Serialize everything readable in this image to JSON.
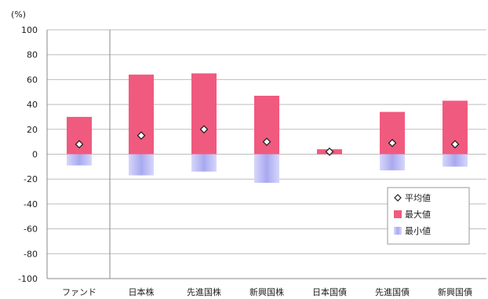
{
  "chart_data": {
    "type": "bar",
    "unit_label": "(%)",
    "categories": [
      "ファンド",
      "日本株",
      "先進国株",
      "新興国株",
      "日本国債",
      "先進国債",
      "新興国債"
    ],
    "series": [
      {
        "name": "平均値",
        "marker": "diamond",
        "values": [
          8,
          15,
          20,
          10,
          2,
          9,
          8
        ]
      },
      {
        "name": "最大値",
        "color": "#f05a7e",
        "values": [
          30,
          64,
          65,
          47,
          4,
          34,
          43
        ]
      },
      {
        "name": "最小値",
        "color": "#a9a9f0",
        "values": [
          -9,
          -17,
          -14,
          -23,
          0,
          -13,
          -10
        ]
      }
    ],
    "ylim": [
      -100,
      100
    ],
    "yticks": [
      "100",
      "80",
      "60",
      "40",
      "20",
      "0",
      "-20",
      "-40",
      "-60",
      "-80",
      "-100"
    ],
    "grid": true,
    "legend_position": "bottom-right"
  }
}
